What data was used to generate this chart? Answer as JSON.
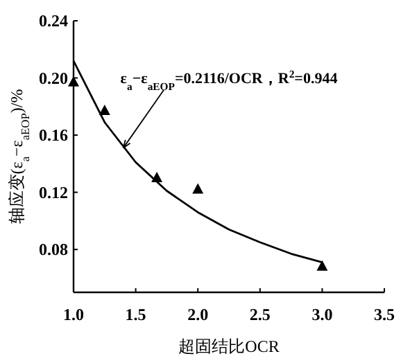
{
  "chart_data": {
    "type": "scatter",
    "xlabel": "超固结比OCR",
    "ylabel": "轴应变(ε$_{a}$−ε$_{aEOP}$)/%",
    "xlim": [
      1.0,
      3.5
    ],
    "ylim": [
      0.05,
      0.24
    ],
    "xticks": [
      {
        "value": 1.0,
        "label": "1.0"
      },
      {
        "value": 1.5,
        "label": "1.5"
      },
      {
        "value": 2.0,
        "label": "2.0"
      },
      {
        "value": 2.5,
        "label": "2.5"
      },
      {
        "value": 3.0,
        "label": "3.0"
      },
      {
        "value": 3.5,
        "label": "3.5"
      }
    ],
    "yticks": [
      0.08,
      0.12,
      0.16,
      {
        "value": 0.2,
        "label": "0.20"
      },
      0.24
    ],
    "grid": false,
    "series": [
      {
        "marker": "triangle",
        "color": "#000000",
        "x": [
          1.0,
          1.25,
          1.67,
          2.0,
          3.0
        ],
        "values": [
          0.197,
          0.177,
          0.13,
          0.122,
          0.068
        ]
      },
      {
        "type": "line",
        "marker": "none",
        "line_style": "solid",
        "color": "#000000",
        "x": [
          1.0,
          1.25,
          1.5,
          1.75,
          2.0,
          2.25,
          2.5,
          2.75,
          3.0
        ],
        "values": [
          0.212,
          0.169,
          0.141,
          0.121,
          0.106,
          0.094,
          0.085,
          0.077,
          0.071
        ]
      }
    ],
    "annotations": [
      {
        "text": "ε$_{a}$−ε$_{aEOP}$=0.2116/OCR，R$^{2}$=0.944",
        "x": 1.4,
        "y": 0.151
      }
    ]
  }
}
